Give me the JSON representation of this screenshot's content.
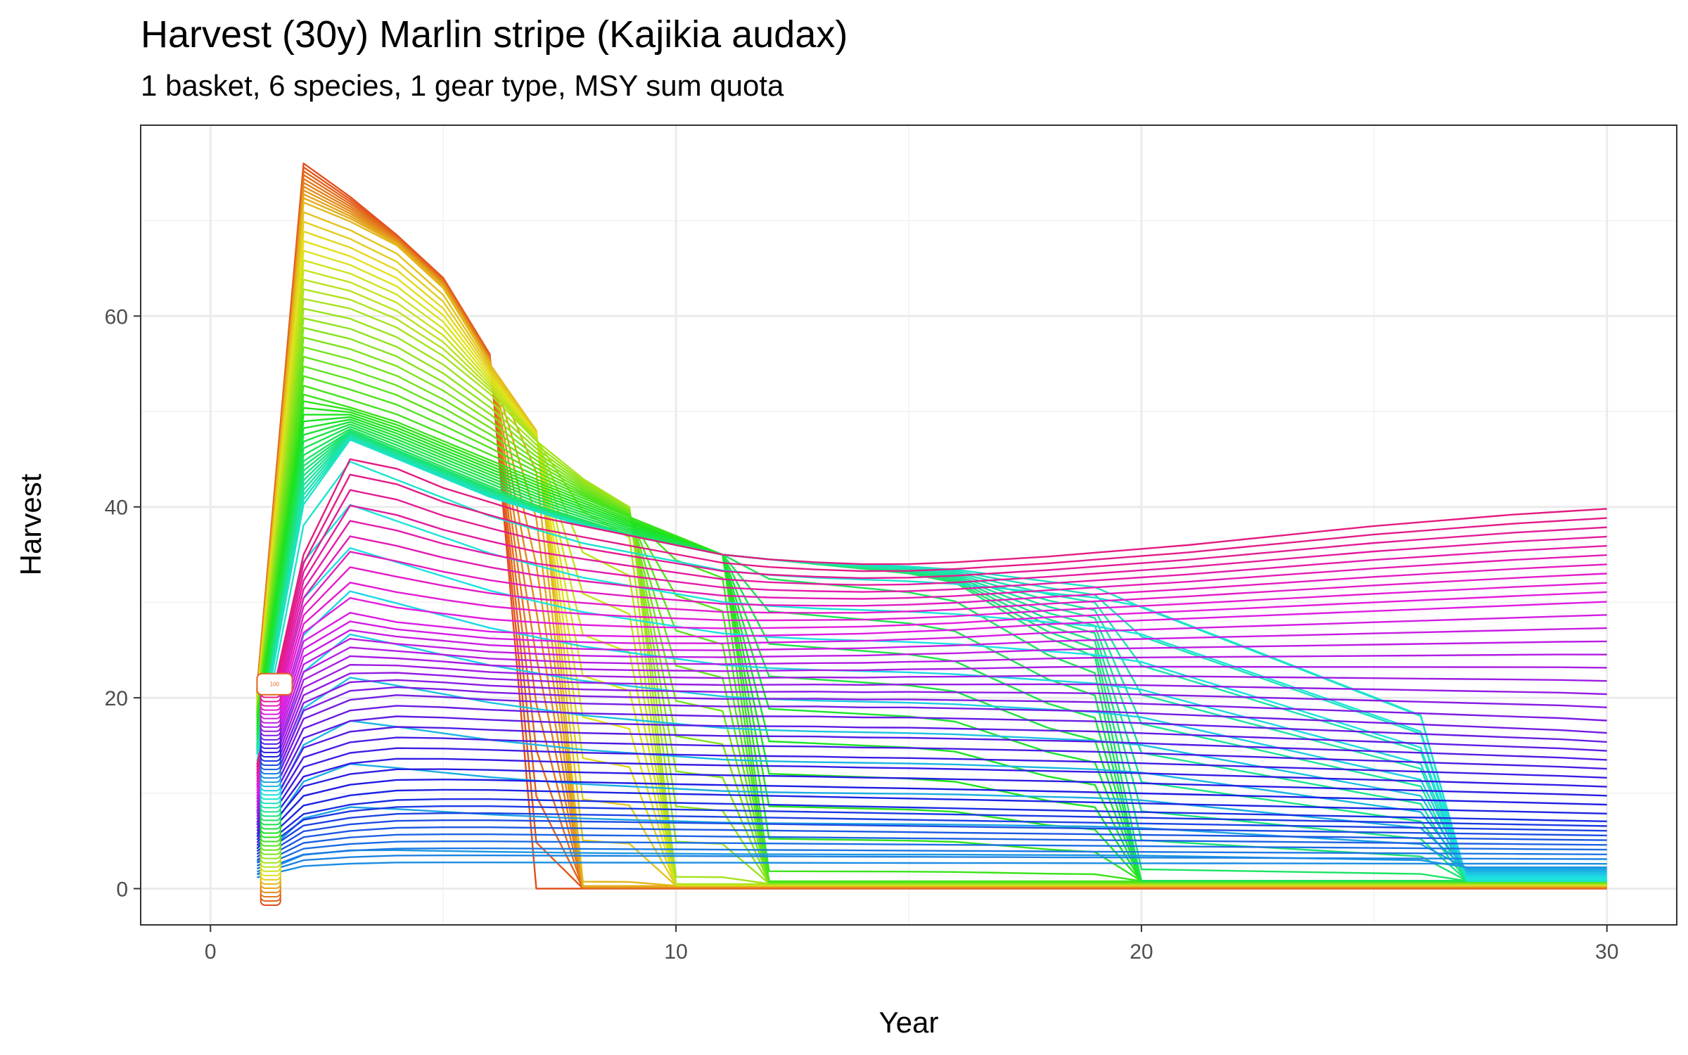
{
  "chart_data": {
    "type": "line",
    "title": "Harvest (30y) Marlin stripe (Kajikia audax)",
    "subtitle": "1 basket, 6 species, 1 gear type, MSY sum quota",
    "xlabel": "Year",
    "ylabel": "Harvest",
    "xlim": [
      -1.5,
      31.5
    ],
    "ylim": [
      -3.8,
      80
    ],
    "x_ticks": [
      0,
      10,
      20,
      30
    ],
    "y_ticks": [
      0,
      20,
      40,
      60
    ],
    "grid": true,
    "legend": "none",
    "series_count": 100,
    "color_scale": "hue gradient: red → orange → olive → green → teal → blue → purple → pink",
    "end_label": "100",
    "x": [
      1,
      2,
      3,
      4,
      5,
      6,
      7,
      8,
      9,
      10,
      11,
      12,
      13,
      14,
      15,
      16,
      17,
      18,
      19,
      20,
      21,
      22,
      23,
      24,
      25,
      26,
      27,
      28,
      29,
      30
    ],
    "representative_series": [
      {
        "values": [
          21,
          76,
          72.5,
          68.5,
          64,
          56,
          0,
          0,
          0,
          0,
          0,
          0,
          0,
          0,
          0,
          0,
          0,
          0,
          0,
          0,
          0,
          0,
          0,
          0,
          0,
          0,
          0,
          0,
          0,
          0
        ]
      },
      {
        "values": [
          20,
          72,
          70,
          67.5,
          63,
          55,
          48,
          0.3,
          0.3,
          0.3,
          0.3,
          0.3,
          0.3,
          0.3,
          0.3,
          0.3,
          0.3,
          0.3,
          0.3,
          0.3,
          0.3,
          0.3,
          0.3,
          0.3,
          0.3,
          0.3,
          0.3,
          0.3,
          0.3,
          0.3
        ]
      },
      {
        "values": [
          19,
          62,
          61,
          59,
          56,
          52,
          47,
          43,
          40,
          0.5,
          0.5,
          0.5,
          0.5,
          0.5,
          0.5,
          0.5,
          0.5,
          0.5,
          0.5,
          0.5,
          0.5,
          0.5,
          0.5,
          0.5,
          0.5,
          0.5,
          0.5,
          0.5,
          0.5,
          0.5
        ]
      },
      {
        "values": [
          18,
          52,
          50.5,
          49,
          47,
          45,
          43,
          41,
          39,
          37,
          35,
          0.8,
          0.8,
          0.8,
          0.8,
          0.8,
          0.8,
          0.8,
          0.8,
          0.8,
          0.8,
          0.8,
          0.8,
          0.8,
          0.8,
          0.8,
          0.8,
          0.8,
          0.8,
          0.8
        ]
      },
      {
        "values": [
          15,
          45,
          48,
          46,
          44,
          42,
          40,
          38.5,
          37,
          36,
          35,
          34.5,
          34,
          33.5,
          33,
          32,
          29,
          26,
          24,
          0.8,
          0.8,
          0.8,
          0.8,
          0.8,
          0.8,
          0.8,
          0.8,
          0.8,
          0.8,
          0.8
        ]
      },
      {
        "values": [
          14,
          40,
          47,
          45,
          43,
          41,
          39.5,
          38,
          37,
          36,
          35,
          34.5,
          34.2,
          34,
          33.8,
          33.5,
          33,
          32.5,
          32,
          31,
          29,
          27,
          25,
          23,
          21,
          19,
          0.8,
          0.8,
          0.8,
          0.8
        ]
      },
      {
        "values": [
          13,
          35,
          45,
          44,
          42,
          40.5,
          39,
          38,
          37,
          36,
          35,
          34.5,
          34.2,
          34,
          34,
          34.2,
          34.5,
          34.8,
          35.2,
          35.6,
          36,
          36.5,
          37,
          37.5,
          38,
          38.4,
          38.8,
          39.2,
          39.5,
          39.8
        ]
      },
      {
        "values": [
          10,
          26,
          29,
          28,
          27.5,
          27,
          26.8,
          26.6,
          26.5,
          26.5,
          26.5,
          26.6,
          26.7,
          26.8,
          27,
          27.2,
          27.5,
          27.8,
          28,
          28.2,
          28.4,
          28.6,
          28.8,
          29,
          29.2,
          29.4,
          29.6,
          29.8,
          30,
          30.2
        ]
      },
      {
        "values": [
          7,
          18,
          20,
          20.5,
          20.3,
          20,
          19.8,
          19.6,
          19.5,
          19.4,
          19.3,
          19.3,
          19.3,
          19.2,
          19.2,
          19.1,
          19,
          18.9,
          18.8,
          18.6,
          18.4,
          18.2,
          18,
          17.8,
          17.6,
          17.4,
          17.2,
          17,
          16.8,
          16.5
        ]
      },
      {
        "values": [
          4,
          8,
          9,
          9.5,
          9.6,
          9.6,
          9.5,
          9.4,
          9.3,
          9.2,
          9.1,
          9,
          8.9,
          8.8,
          8.7,
          8.6,
          8.5,
          8.4,
          8.3,
          8.2,
          8.1,
          8,
          7.9,
          7.8,
          7.7,
          7.6,
          7.5,
          7.4,
          7.3,
          7.2
        ]
      },
      {
        "values": [
          1,
          2,
          2.2,
          2.3,
          2.3,
          2.3,
          2.3,
          2.3,
          2.3,
          2.3,
          2.3,
          2.3,
          2.3,
          2.3,
          2.3,
          2.3,
          2.3,
          2.3,
          2.3,
          2.3,
          2.3,
          2.3,
          2.3,
          2.3,
          2.3,
          2.3,
          2.3,
          2.3,
          2.3,
          2.3
        ]
      }
    ]
  }
}
